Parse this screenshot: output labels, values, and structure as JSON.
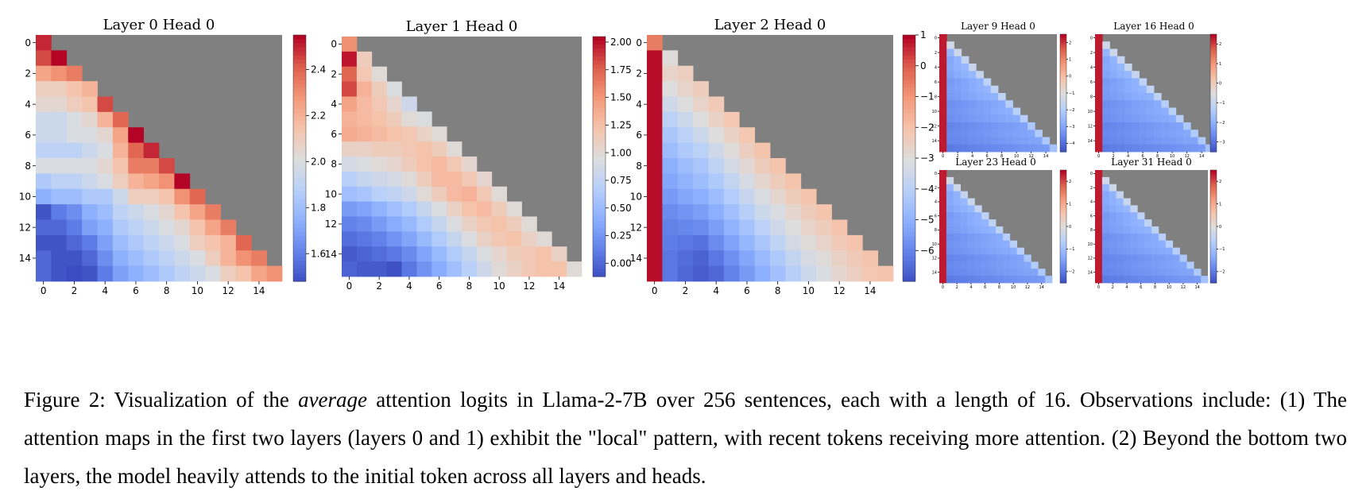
{
  "chart_data": [
    {
      "type": "heatmap",
      "title": "Layer 0 Head 0",
      "xticks": [
        "0",
        "2",
        "4",
        "6",
        "8",
        "10",
        "12",
        "14"
      ],
      "yticks": [
        "0",
        "2",
        "4",
        "6",
        "8",
        "10",
        "12",
        "14"
      ],
      "colorbar": {
        "min": 1.48,
        "max": 2.55,
        "ticks": [
          1.6,
          1.8,
          2.0,
          2.2,
          2.4
        ],
        "labels": [
          "1.6",
          "1.8",
          "2.0",
          "2.2",
          "2.4"
        ]
      },
      "masked_color": "#808080",
      "values": [
        [
          2.5
        ],
        [
          2.45,
          2.55
        ],
        [
          2.25,
          2.3,
          2.35
        ],
        [
          2.1,
          2.1,
          2.15,
          2.2
        ],
        [
          2.05,
          2.05,
          2.1,
          2.15,
          2.45
        ],
        [
          1.95,
          1.95,
          2.0,
          2.05,
          2.2,
          2.4
        ],
        [
          1.95,
          1.95,
          2.0,
          2.0,
          2.05,
          2.25,
          2.55
        ],
        [
          1.9,
          1.9,
          1.9,
          1.95,
          2.0,
          2.2,
          2.4,
          2.5
        ],
        [
          2.0,
          2.0,
          2.0,
          2.0,
          2.05,
          2.15,
          2.35,
          2.35,
          2.45
        ],
        [
          1.85,
          1.9,
          1.9,
          1.95,
          2.0,
          2.1,
          2.2,
          2.25,
          2.3,
          2.55
        ],
        [
          1.75,
          1.8,
          1.8,
          1.85,
          1.85,
          1.95,
          2.1,
          2.1,
          2.15,
          2.3,
          2.4
        ],
        [
          1.5,
          1.6,
          1.65,
          1.75,
          1.8,
          1.9,
          1.95,
          2.0,
          2.05,
          2.15,
          2.25,
          2.35
        ],
        [
          1.55,
          1.55,
          1.6,
          1.7,
          1.75,
          1.85,
          1.9,
          1.95,
          2.0,
          2.05,
          2.15,
          2.25,
          2.35
        ],
        [
          1.5,
          1.5,
          1.55,
          1.6,
          1.7,
          1.8,
          1.85,
          1.9,
          1.95,
          2.0,
          2.1,
          2.15,
          2.2,
          2.4
        ],
        [
          1.55,
          1.5,
          1.5,
          1.55,
          1.65,
          1.75,
          1.8,
          1.85,
          1.9,
          1.95,
          2.0,
          2.1,
          2.2,
          2.3,
          2.35
        ],
        [
          1.55,
          1.5,
          1.48,
          1.5,
          1.6,
          1.7,
          1.75,
          1.8,
          1.85,
          1.9,
          1.95,
          2.0,
          2.1,
          2.15,
          2.25,
          2.3
        ]
      ]
    },
    {
      "type": "heatmap",
      "title": "Layer 1 Head 0",
      "xticks": [
        "0",
        "2",
        "4",
        "6",
        "8",
        "10",
        "12",
        "14"
      ],
      "yticks": [
        "0",
        "2",
        "4",
        "6",
        "8",
        "10",
        "12",
        "14"
      ],
      "colorbar": {
        "min": -0.12,
        "max": 2.05,
        "ticks": [
          0.0,
          0.25,
          0.5,
          0.75,
          1.0,
          1.25,
          1.5,
          1.75,
          2.0
        ],
        "labels": [
          "0.00",
          "0.25",
          "0.50",
          "0.75",
          "1.00",
          "1.25",
          "1.50",
          "1.75",
          "2.00"
        ]
      },
      "masked_color": "#808080",
      "values": [
        [
          1.55
        ],
        [
          2.0,
          1.15
        ],
        [
          1.75,
          1.2,
          1.0
        ],
        [
          1.85,
          1.35,
          1.15,
          0.95
        ],
        [
          1.45,
          1.3,
          1.2,
          1.05,
          0.85
        ],
        [
          1.35,
          1.3,
          1.25,
          1.15,
          1.0,
          0.95
        ],
        [
          1.4,
          1.35,
          1.3,
          1.25,
          1.2,
          1.1,
          1.0
        ],
        [
          1.1,
          1.1,
          1.15,
          1.15,
          1.2,
          1.25,
          1.15,
          1.0
        ],
        [
          0.9,
          0.95,
          1.0,
          1.05,
          1.15,
          1.25,
          1.3,
          1.2,
          1.05
        ],
        [
          0.7,
          0.8,
          0.85,
          0.9,
          1.0,
          1.15,
          1.3,
          1.3,
          1.2,
          1.05
        ],
        [
          0.55,
          0.6,
          0.7,
          0.75,
          0.85,
          1.0,
          1.15,
          1.3,
          1.35,
          1.2,
          1.0
        ],
        [
          0.3,
          0.35,
          0.45,
          0.55,
          0.65,
          0.8,
          0.95,
          1.1,
          1.25,
          1.3,
          1.15,
          1.0
        ],
        [
          0.15,
          0.2,
          0.3,
          0.4,
          0.5,
          0.65,
          0.8,
          0.95,
          1.1,
          1.2,
          1.25,
          1.15,
          1.0
        ],
        [
          0.05,
          0.1,
          0.15,
          0.25,
          0.35,
          0.5,
          0.65,
          0.8,
          0.95,
          1.1,
          1.2,
          1.25,
          1.1,
          1.0
        ],
        [
          -0.05,
          0.0,
          0.05,
          0.1,
          0.2,
          0.35,
          0.5,
          0.65,
          0.8,
          0.95,
          1.05,
          1.15,
          1.2,
          1.25,
          1.1
        ],
        [
          0.0,
          -0.05,
          -0.05,
          -0.1,
          0.1,
          0.25,
          0.4,
          0.55,
          0.7,
          0.85,
          1.0,
          1.1,
          1.2,
          1.25,
          1.25,
          1.0
        ]
      ]
    },
    {
      "type": "heatmap",
      "title": "Layer 2 Head 0",
      "xticks": [
        "0",
        "2",
        "4",
        "6",
        "8",
        "10",
        "12",
        "14"
      ],
      "yticks": [
        "0",
        "2",
        "4",
        "6",
        "8",
        "10",
        "12",
        "14"
      ],
      "colorbar": {
        "min": -7.0,
        "max": 1.0,
        "ticks": [
          1,
          0,
          -1,
          -2,
          -3,
          -4,
          -5,
          -6
        ],
        "labels": [
          "1",
          "0",
          "−1",
          "−2",
          "−3",
          "−4",
          "−5",
          "−6"
        ]
      },
      "masked_color": "#808080",
      "values": [
        [
          -0.5
        ],
        [
          0.9,
          -2.9
        ],
        [
          0.9,
          -2.6,
          -2.4
        ],
        [
          0.9,
          -3.0,
          -2.6,
          -2.3
        ],
        [
          0.9,
          -3.4,
          -3.0,
          -2.6,
          -2.2
        ],
        [
          0.9,
          -3.9,
          -3.5,
          -3.0,
          -2.5,
          -2.1
        ],
        [
          0.9,
          -4.3,
          -3.9,
          -3.5,
          -3.0,
          -2.5,
          -2.1
        ],
        [
          0.9,
          -4.6,
          -4.2,
          -3.9,
          -3.4,
          -2.9,
          -2.4,
          -2.0
        ],
        [
          0.9,
          -5.0,
          -4.6,
          -4.3,
          -3.8,
          -3.3,
          -2.8,
          -2.3,
          -2.0
        ],
        [
          0.9,
          -5.2,
          -4.9,
          -4.6,
          -4.2,
          -3.7,
          -3.2,
          -2.7,
          -2.3,
          -2.0
        ],
        [
          0.9,
          -5.5,
          -5.2,
          -5.0,
          -4.6,
          -4.1,
          -3.6,
          -3.1,
          -2.7,
          -2.3,
          -2.0
        ],
        [
          0.9,
          -5.8,
          -5.6,
          -5.4,
          -5.0,
          -4.5,
          -4.0,
          -3.5,
          -3.1,
          -2.7,
          -2.3,
          -2.0
        ],
        [
          0.9,
          -6.0,
          -5.9,
          -5.8,
          -5.4,
          -4.9,
          -4.4,
          -3.9,
          -3.4,
          -3.0,
          -2.6,
          -2.3,
          -2.0
        ],
        [
          0.9,
          -6.1,
          -6.2,
          -6.3,
          -5.8,
          -5.3,
          -4.8,
          -4.3,
          -3.8,
          -3.3,
          -2.9,
          -2.6,
          -2.2,
          -2.0
        ],
        [
          0.9,
          -6.2,
          -6.4,
          -6.6,
          -6.2,
          -5.7,
          -5.2,
          -4.7,
          -4.2,
          -3.7,
          -3.2,
          -2.9,
          -2.5,
          -2.2,
          -2.0
        ],
        [
          0.9,
          -6.2,
          -6.5,
          -6.7,
          -6.5,
          -6.0,
          -5.5,
          -5.0,
          -4.5,
          -4.0,
          -3.5,
          -3.1,
          -2.7,
          -2.4,
          -2.1,
          -2.0
        ]
      ]
    },
    {
      "type": "heatmap",
      "title": "Layer 9 Head 0",
      "xticks": [
        "0",
        "2",
        "4",
        "6",
        "8",
        "10",
        "12",
        "14"
      ],
      "yticks": [
        "0",
        "2",
        "4",
        "6",
        "8",
        "10",
        "12",
        "14"
      ],
      "colorbar": {
        "ticks": [
          2,
          1,
          0,
          -1,
          -2,
          -3,
          -4
        ],
        "labels": [
          "2",
          "1",
          "0",
          "−1",
          "−2",
          "−3",
          "−4"
        ]
      },
      "masked_color": "#808080"
    },
    {
      "type": "heatmap",
      "title": "Layer 16 Head 0",
      "xticks": [
        "0",
        "2",
        "4",
        "6",
        "8",
        "10",
        "12",
        "14"
      ],
      "yticks": [
        "0",
        "2",
        "4",
        "6",
        "8",
        "10",
        "12",
        "14"
      ],
      "colorbar": {
        "ticks": [
          2,
          1,
          0,
          -1,
          -2,
          -3
        ],
        "labels": [
          "2",
          "1",
          "0",
          "−1",
          "−2",
          "−3"
        ]
      },
      "masked_color": "#808080"
    },
    {
      "type": "heatmap",
      "title": "Layer 23 Head 0",
      "xticks": [
        "0",
        "2",
        "4",
        "6",
        "8",
        "10",
        "12",
        "14"
      ],
      "yticks": [
        "0",
        "2",
        "4",
        "6",
        "8",
        "10",
        "12",
        "14"
      ],
      "colorbar": {
        "ticks": [
          2,
          1,
          0,
          -1,
          -2
        ],
        "labels": [
          "2",
          "1",
          "0",
          "−1",
          "−2"
        ]
      },
      "masked_color": "#808080"
    },
    {
      "type": "heatmap",
      "title": "Layer 31 Head 0",
      "xticks": [
        "0",
        "2",
        "4",
        "6",
        "8",
        "10",
        "12",
        "14"
      ],
      "yticks": [
        "0",
        "2",
        "4",
        "6",
        "8",
        "10",
        "12",
        "14"
      ],
      "colorbar": {
        "ticks": [
          2,
          1,
          0,
          -1,
          -2
        ],
        "labels": [
          "2",
          "1",
          "0",
          "−1",
          "−2"
        ]
      },
      "masked_color": "#808080"
    }
  ],
  "caption": {
    "before": "Figure 2: Visualization of the ",
    "emph": "average",
    "after": " attention logits in Llama-2-7B over 256 sentences, each with a length of 16. Observations include: (1) The attention maps in the first two layers (layers 0 and 1) exhibit the \"local\" pattern, with recent tokens receiving more attention. (2) Beyond the bottom two layers, the model heavily attends to the initial token across all layers and heads."
  }
}
